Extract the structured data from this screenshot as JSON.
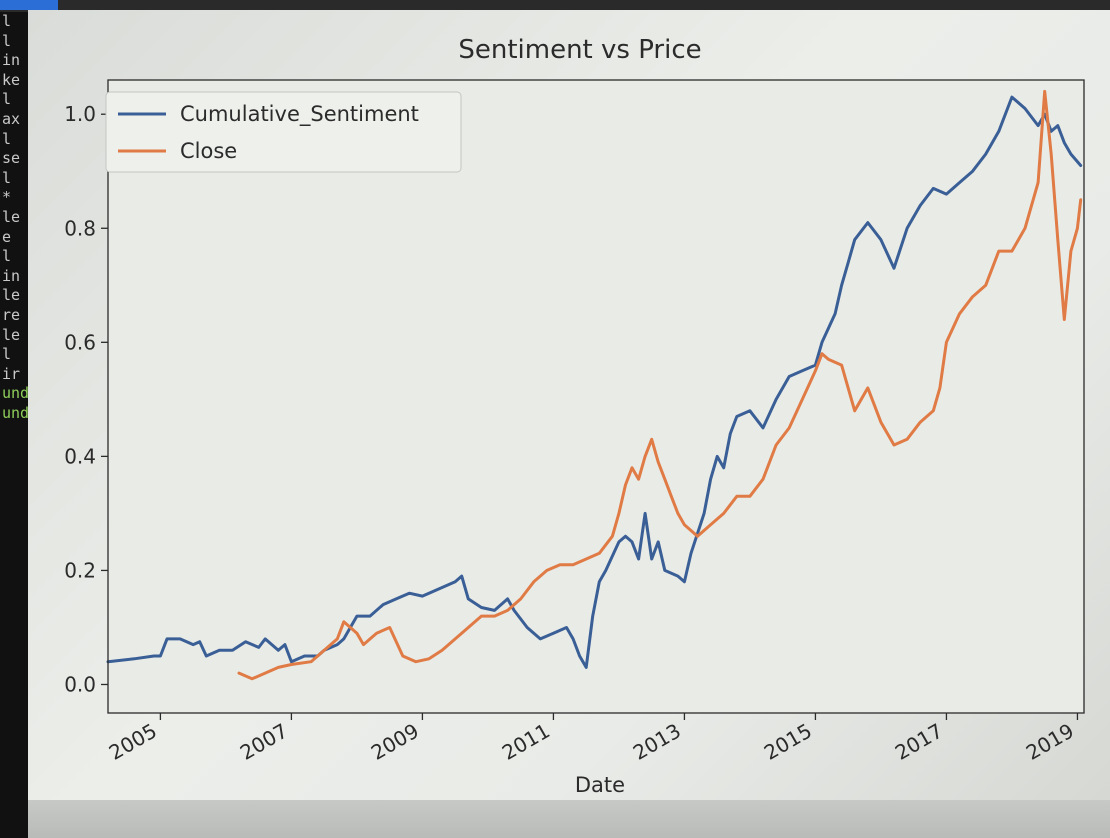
{
  "chart_data": {
    "type": "line",
    "title": "Sentiment vs Price",
    "xlabel": "Date",
    "ylabel": "",
    "xlim": [
      2004.2,
      2019.1
    ],
    "ylim": [
      -0.05,
      1.06
    ],
    "x_ticks": [
      {
        "value": 2005,
        "label": "2005"
      },
      {
        "value": 2007,
        "label": "2007"
      },
      {
        "value": 2009,
        "label": "2009"
      },
      {
        "value": 2011,
        "label": "2011"
      },
      {
        "value": 2013,
        "label": "2013"
      },
      {
        "value": 2015,
        "label": "2015"
      },
      {
        "value": 2017,
        "label": "2017"
      },
      {
        "value": 2019,
        "label": "2019"
      }
    ],
    "y_ticks": [
      {
        "value": 0.0,
        "label": "0.0"
      },
      {
        "value": 0.2,
        "label": "0.2"
      },
      {
        "value": 0.4,
        "label": "0.4"
      },
      {
        "value": 0.6,
        "label": "0.6"
      },
      {
        "value": 0.8,
        "label": "0.8"
      },
      {
        "value": 1.0,
        "label": "1.0"
      }
    ],
    "legend": {
      "position": "top-left"
    },
    "grid": false,
    "series": [
      {
        "name": "Cumulative_Sentiment",
        "color": "#3a5f96",
        "points": [
          [
            2004.2,
            0.04
          ],
          [
            2004.6,
            0.045
          ],
          [
            2004.9,
            0.05
          ],
          [
            2005.0,
            0.05
          ],
          [
            2005.1,
            0.08
          ],
          [
            2005.3,
            0.08
          ],
          [
            2005.5,
            0.07
          ],
          [
            2005.6,
            0.075
          ],
          [
            2005.7,
            0.05
          ],
          [
            2005.9,
            0.06
          ],
          [
            2006.1,
            0.06
          ],
          [
            2006.3,
            0.075
          ],
          [
            2006.5,
            0.065
          ],
          [
            2006.6,
            0.08
          ],
          [
            2006.8,
            0.06
          ],
          [
            2006.9,
            0.07
          ],
          [
            2007.0,
            0.04
          ],
          [
            2007.2,
            0.05
          ],
          [
            2007.4,
            0.05
          ],
          [
            2007.5,
            0.06
          ],
          [
            2007.7,
            0.07
          ],
          [
            2007.8,
            0.08
          ],
          [
            2008.0,
            0.12
          ],
          [
            2008.2,
            0.12
          ],
          [
            2008.4,
            0.14
          ],
          [
            2008.6,
            0.15
          ],
          [
            2008.8,
            0.16
          ],
          [
            2009.0,
            0.155
          ],
          [
            2009.1,
            0.16
          ],
          [
            2009.3,
            0.17
          ],
          [
            2009.5,
            0.18
          ],
          [
            2009.6,
            0.19
          ],
          [
            2009.7,
            0.15
          ],
          [
            2009.9,
            0.135
          ],
          [
            2010.1,
            0.13
          ],
          [
            2010.3,
            0.15
          ],
          [
            2010.4,
            0.13
          ],
          [
            2010.6,
            0.1
          ],
          [
            2010.8,
            0.08
          ],
          [
            2011.0,
            0.09
          ],
          [
            2011.2,
            0.1
          ],
          [
            2011.3,
            0.08
          ],
          [
            2011.4,
            0.05
          ],
          [
            2011.5,
            0.03
          ],
          [
            2011.6,
            0.12
          ],
          [
            2011.7,
            0.18
          ],
          [
            2011.8,
            0.2
          ],
          [
            2012.0,
            0.25
          ],
          [
            2012.1,
            0.26
          ],
          [
            2012.2,
            0.25
          ],
          [
            2012.3,
            0.22
          ],
          [
            2012.4,
            0.3
          ],
          [
            2012.5,
            0.22
          ],
          [
            2012.6,
            0.25
          ],
          [
            2012.7,
            0.2
          ],
          [
            2012.9,
            0.19
          ],
          [
            2013.0,
            0.18
          ],
          [
            2013.1,
            0.23
          ],
          [
            2013.3,
            0.3
          ],
          [
            2013.4,
            0.36
          ],
          [
            2013.5,
            0.4
          ],
          [
            2013.6,
            0.38
          ],
          [
            2013.7,
            0.44
          ],
          [
            2013.8,
            0.47
          ],
          [
            2014.0,
            0.48
          ],
          [
            2014.2,
            0.45
          ],
          [
            2014.4,
            0.5
          ],
          [
            2014.6,
            0.54
          ],
          [
            2014.8,
            0.55
          ],
          [
            2015.0,
            0.56
          ],
          [
            2015.1,
            0.6
          ],
          [
            2015.3,
            0.65
          ],
          [
            2015.4,
            0.7
          ],
          [
            2015.5,
            0.74
          ],
          [
            2015.6,
            0.78
          ],
          [
            2015.8,
            0.81
          ],
          [
            2016.0,
            0.78
          ],
          [
            2016.2,
            0.73
          ],
          [
            2016.4,
            0.8
          ],
          [
            2016.6,
            0.84
          ],
          [
            2016.8,
            0.87
          ],
          [
            2017.0,
            0.86
          ],
          [
            2017.2,
            0.88
          ],
          [
            2017.4,
            0.9
          ],
          [
            2017.6,
            0.93
          ],
          [
            2017.8,
            0.97
          ],
          [
            2018.0,
            1.03
          ],
          [
            2018.2,
            1.01
          ],
          [
            2018.4,
            0.98
          ],
          [
            2018.5,
            1.0
          ],
          [
            2018.6,
            0.97
          ],
          [
            2018.7,
            0.98
          ],
          [
            2018.8,
            0.95
          ],
          [
            2018.9,
            0.93
          ],
          [
            2019.05,
            0.91
          ]
        ]
      },
      {
        "name": "Close",
        "color": "#e07b45",
        "points": [
          [
            2006.2,
            0.02
          ],
          [
            2006.4,
            0.01
          ],
          [
            2006.6,
            0.02
          ],
          [
            2006.8,
            0.03
          ],
          [
            2007.0,
            0.035
          ],
          [
            2007.3,
            0.04
          ],
          [
            2007.5,
            0.06
          ],
          [
            2007.7,
            0.08
          ],
          [
            2007.8,
            0.11
          ],
          [
            2008.0,
            0.09
          ],
          [
            2008.1,
            0.07
          ],
          [
            2008.3,
            0.09
          ],
          [
            2008.5,
            0.1
          ],
          [
            2008.7,
            0.05
          ],
          [
            2008.9,
            0.04
          ],
          [
            2009.1,
            0.045
          ],
          [
            2009.3,
            0.06
          ],
          [
            2009.5,
            0.08
          ],
          [
            2009.7,
            0.1
          ],
          [
            2009.9,
            0.12
          ],
          [
            2010.1,
            0.12
          ],
          [
            2010.3,
            0.13
          ],
          [
            2010.5,
            0.15
          ],
          [
            2010.7,
            0.18
          ],
          [
            2010.9,
            0.2
          ],
          [
            2011.1,
            0.21
          ],
          [
            2011.3,
            0.21
          ],
          [
            2011.5,
            0.22
          ],
          [
            2011.7,
            0.23
          ],
          [
            2011.9,
            0.26
          ],
          [
            2012.0,
            0.3
          ],
          [
            2012.1,
            0.35
          ],
          [
            2012.2,
            0.38
          ],
          [
            2012.3,
            0.36
          ],
          [
            2012.4,
            0.4
          ],
          [
            2012.5,
            0.43
          ],
          [
            2012.6,
            0.39
          ],
          [
            2012.7,
            0.36
          ],
          [
            2012.8,
            0.33
          ],
          [
            2012.9,
            0.3
          ],
          [
            2013.0,
            0.28
          ],
          [
            2013.2,
            0.26
          ],
          [
            2013.4,
            0.28
          ],
          [
            2013.6,
            0.3
          ],
          [
            2013.8,
            0.33
          ],
          [
            2014.0,
            0.33
          ],
          [
            2014.2,
            0.36
          ],
          [
            2014.4,
            0.42
          ],
          [
            2014.6,
            0.45
          ],
          [
            2014.8,
            0.5
          ],
          [
            2015.0,
            0.55
          ],
          [
            2015.1,
            0.58
          ],
          [
            2015.2,
            0.57
          ],
          [
            2015.4,
            0.56
          ],
          [
            2015.6,
            0.48
          ],
          [
            2015.8,
            0.52
          ],
          [
            2016.0,
            0.46
          ],
          [
            2016.2,
            0.42
          ],
          [
            2016.4,
            0.43
          ],
          [
            2016.6,
            0.46
          ],
          [
            2016.8,
            0.48
          ],
          [
            2016.9,
            0.52
          ],
          [
            2017.0,
            0.6
          ],
          [
            2017.2,
            0.65
          ],
          [
            2017.4,
            0.68
          ],
          [
            2017.6,
            0.7
          ],
          [
            2017.8,
            0.76
          ],
          [
            2018.0,
            0.76
          ],
          [
            2018.2,
            0.8
          ],
          [
            2018.4,
            0.88
          ],
          [
            2018.5,
            1.04
          ],
          [
            2018.6,
            0.93
          ],
          [
            2018.7,
            0.78
          ],
          [
            2018.8,
            0.64
          ],
          [
            2018.9,
            0.76
          ],
          [
            2019.0,
            0.8
          ],
          [
            2019.05,
            0.85
          ]
        ]
      }
    ]
  },
  "colors": {
    "axis": "#2b2b2b",
    "plot_background": "#e9ebe7"
  },
  "terminal_lines": [
    "l",
    "l",
    "in",
    "ke",
    "l",
    "ax",
    "l",
    "se",
    "l",
    "*",
    "le",
    "e",
    "l",
    "in",
    "le",
    "re",
    "le",
    "l",
    "ir",
    "und",
    "und"
  ]
}
